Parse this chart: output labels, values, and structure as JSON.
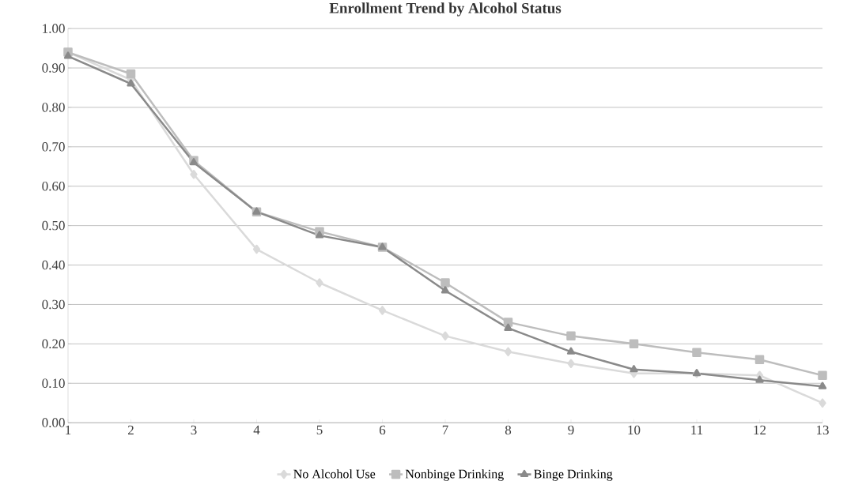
{
  "chart_data": {
    "type": "line",
    "title": "Enrollment Trend by Alcohol Status",
    "x": [
      1,
      2,
      3,
      4,
      5,
      6,
      7,
      8,
      9,
      10,
      11,
      12,
      13
    ],
    "series": [
      {
        "name": "No Alcohol Use",
        "color": "#dadada",
        "marker": "diamond",
        "values": [
          0.94,
          0.87,
          0.63,
          0.44,
          0.355,
          0.285,
          0.22,
          0.18,
          0.15,
          0.125,
          0.125,
          0.12,
          0.05
        ]
      },
      {
        "name": "Nonbinge Drinking",
        "color": "#bdbdbd",
        "marker": "square",
        "values": [
          0.94,
          0.885,
          0.665,
          0.535,
          0.485,
          0.445,
          0.355,
          0.255,
          0.22,
          0.2,
          0.178,
          0.16,
          0.12
        ]
      },
      {
        "name": "Binge Drinking",
        "color": "#8a8a8a",
        "marker": "triangle",
        "values": [
          0.93,
          0.86,
          0.66,
          0.535,
          0.475,
          0.445,
          0.335,
          0.24,
          0.18,
          0.135,
          0.125,
          0.108,
          0.092
        ]
      }
    ],
    "xlim": [
      1,
      13
    ],
    "xticks": [
      1,
      2,
      3,
      4,
      5,
      6,
      7,
      8,
      9,
      10,
      11,
      12,
      13
    ],
    "ylim": [
      0,
      1
    ],
    "yticks": [
      {
        "value": 0,
        "label": "0.00"
      },
      {
        "value": 0.1,
        "label": "0.10"
      },
      {
        "value": 0.2,
        "label": "0.20"
      },
      {
        "value": 0.3,
        "label": "0.30"
      },
      {
        "value": 0.4,
        "label": "0.40"
      },
      {
        "value": 0.5,
        "label": "0.50"
      },
      {
        "value": 0.6,
        "label": "0.60"
      },
      {
        "value": 0.7,
        "label": "0.70"
      },
      {
        "value": 0.8,
        "label": "0.80"
      },
      {
        "value": 0.9,
        "label": "0.90"
      },
      {
        "value": 1,
        "label": "1.00"
      }
    ],
    "grid": "y",
    "legend": "bottom",
    "line_style": "solid"
  }
}
